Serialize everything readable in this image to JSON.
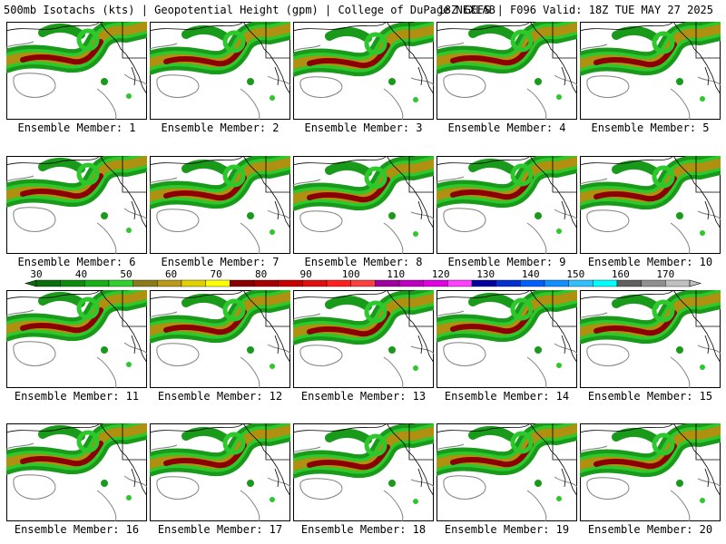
{
  "header": {
    "title": "500mb Isotachs (kts) | Geopotential Height (gpm) | College of DuPage NEXLAB",
    "run_info": "18Z GEFS | F096 Valid: 18Z TUE MAY 27 2025"
  },
  "panels": [
    {
      "label": "Ensemble Member: 1"
    },
    {
      "label": "Ensemble Member: 2"
    },
    {
      "label": "Ensemble Member: 3"
    },
    {
      "label": "Ensemble Member: 4"
    },
    {
      "label": "Ensemble Member: 5"
    },
    {
      "label": "Ensemble Member: 6"
    },
    {
      "label": "Ensemble Member: 7"
    },
    {
      "label": "Ensemble Member: 8"
    },
    {
      "label": "Ensemble Member: 9"
    },
    {
      "label": "Ensemble Member: 10"
    },
    {
      "label": "Ensemble Member: 11"
    },
    {
      "label": "Ensemble Member: 12"
    },
    {
      "label": "Ensemble Member: 13"
    },
    {
      "label": "Ensemble Member: 14"
    },
    {
      "label": "Ensemble Member: 15"
    },
    {
      "label": "Ensemble Member: 16"
    },
    {
      "label": "Ensemble Member: 17"
    },
    {
      "label": "Ensemble Member: 18"
    },
    {
      "label": "Ensemble Member: 19"
    },
    {
      "label": "Ensemble Member: 20"
    }
  ],
  "colorbar": {
    "tick_labels": [
      "30",
      "40",
      "50",
      "60",
      "70",
      "80",
      "90",
      "100",
      "110",
      "120",
      "130",
      "140",
      "150",
      "160",
      "170"
    ],
    "colors": [
      "#0a6e0a",
      "#0e8a0e",
      "#18b018",
      "#30d030",
      "#8a7a18",
      "#b89a18",
      "#e0d000",
      "#ffff00",
      "#8a0000",
      "#a80000",
      "#c80000",
      "#e01010",
      "#ff2020",
      "#ff4040",
      "#a000a0",
      "#c000c0",
      "#e000e0",
      "#ff40ff",
      "#0000a0",
      "#0030d0",
      "#0060ff",
      "#1090ff",
      "#30c0ff",
      "#00ffff",
      "#606060",
      "#909090",
      "#c0c0c0"
    ]
  },
  "map_colors": {
    "jet_outer": "#1a9a1a",
    "jet_mid": "#2cc82c",
    "jet_inner": "#b09010",
    "jet_core": "#8b0000",
    "height_contour": "#808080",
    "coastline": "#000000"
  }
}
